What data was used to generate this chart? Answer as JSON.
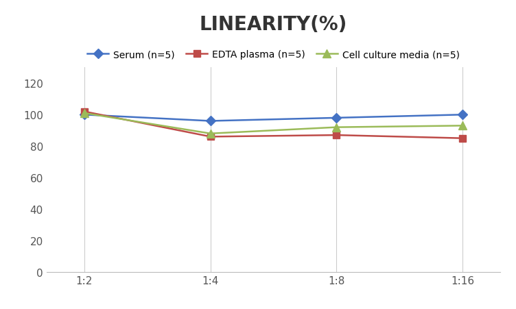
{
  "title": "LINEARITY(%)",
  "x_labels": [
    "1:2",
    "1:4",
    "1:8",
    "1:16"
  ],
  "x_positions": [
    0,
    1,
    2,
    3
  ],
  "series": [
    {
      "label": "Serum (n=5)",
      "values": [
        100,
        96,
        98,
        100
      ],
      "color": "#4472C4",
      "marker": "D",
      "markersize": 7,
      "linewidth": 1.8
    },
    {
      "label": "EDTA plasma (n=5)",
      "values": [
        102,
        86,
        87,
        85
      ],
      "color": "#BE4B48",
      "marker": "s",
      "markersize": 7,
      "linewidth": 1.8
    },
    {
      "label": "Cell culture media (n=5)",
      "values": [
        101,
        88,
        92,
        93
      ],
      "color": "#9BBB59",
      "marker": "^",
      "markersize": 8,
      "linewidth": 1.8
    }
  ],
  "ylim": [
    0,
    130
  ],
  "yticks": [
    0,
    20,
    40,
    60,
    80,
    100,
    120
  ],
  "background_color": "#ffffff",
  "grid_color": "#cccccc",
  "title_fontsize": 20,
  "legend_fontsize": 10,
  "tick_fontsize": 11
}
